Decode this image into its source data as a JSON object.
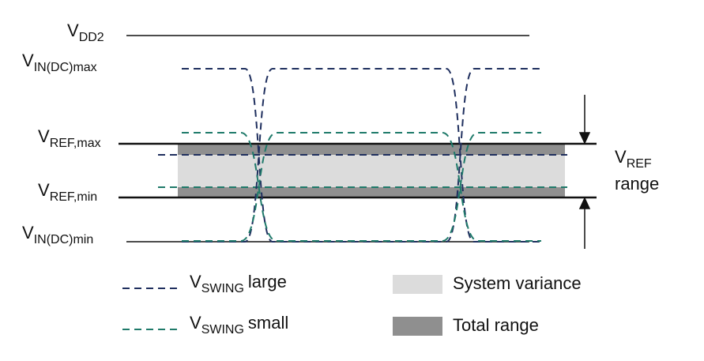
{
  "levels": [
    {
      "main": "V",
      "sub": "DD2"
    },
    {
      "main": "V",
      "sub": "IN(DC)max"
    },
    {
      "main": "V",
      "sub": "REF,max"
    },
    {
      "main": "V",
      "sub": "REF,min"
    },
    {
      "main": "V",
      "sub": "IN(DC)min"
    }
  ],
  "range_label": {
    "main": "V",
    "sub": "REF",
    "text": "range"
  },
  "legend": [
    {
      "main": "V",
      "sub": "SWING",
      "text": "large"
    },
    {
      "main": "V",
      "sub": "SWING",
      "text": "small"
    },
    {
      "text": "System variance"
    },
    {
      "text": "Total range"
    }
  ]
}
